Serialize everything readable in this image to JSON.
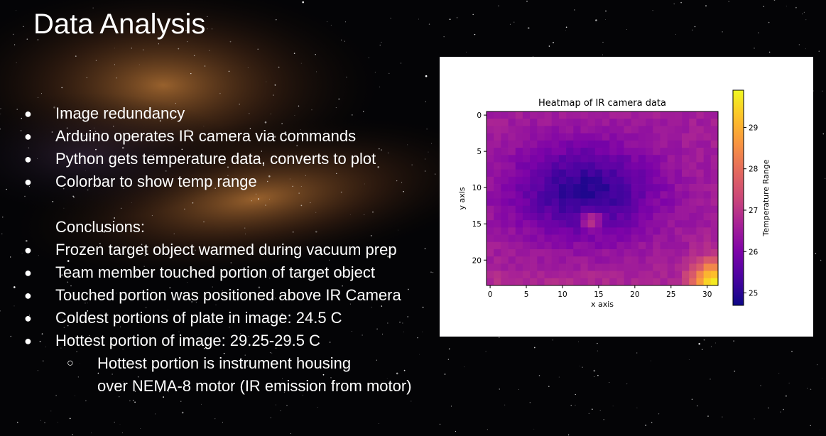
{
  "slide": {
    "title": "Data Analysis",
    "bullets": [
      "Image redundancy",
      "Arduino operates IR camera via commands",
      "Python gets temperature data, converts to plot",
      "Colorbar to show temp range"
    ],
    "conclusions_heading": "Conclusions:",
    "conclusions": [
      "Frozen target object warmed during vacuum prep",
      "Team member touched portion of target object",
      "Touched portion was positioned above IR Camera",
      "Coldest portions of plate in image: 24.5 C",
      "Hottest portion of image: 29.25-29.5 C"
    ],
    "sub_bullet_lines": [
      "Hottest portion is instrument housing",
      "over NEMA-8 motor (IR emission from motor)"
    ]
  },
  "chart_data": {
    "type": "heatmap",
    "title": "Heatmap of IR camera data",
    "xlabel": "x axis",
    "ylabel": "y axis",
    "colorbar_label": "Temperature Range",
    "colormap": "plasma",
    "x_ticks": [
      "0",
      "5",
      "10",
      "15",
      "20",
      "25",
      "30"
    ],
    "y_ticks": [
      "0",
      "5",
      "10",
      "15",
      "20"
    ],
    "colorbar_ticks": [
      "25",
      "26",
      "27",
      "28",
      "29"
    ],
    "grid_size": [
      32,
      24
    ],
    "value_range": [
      24.7,
      29.9
    ],
    "features": {
      "background_temp": 26.6,
      "cold_center": [
        13,
        10.5
      ],
      "cold_temp": 25.0,
      "warm_spot": [
        14,
        14.5
      ],
      "warm_spot_temp": 27.7,
      "hot_corner": [
        31,
        23
      ],
      "hot_corner_temp": 29.6
    }
  }
}
